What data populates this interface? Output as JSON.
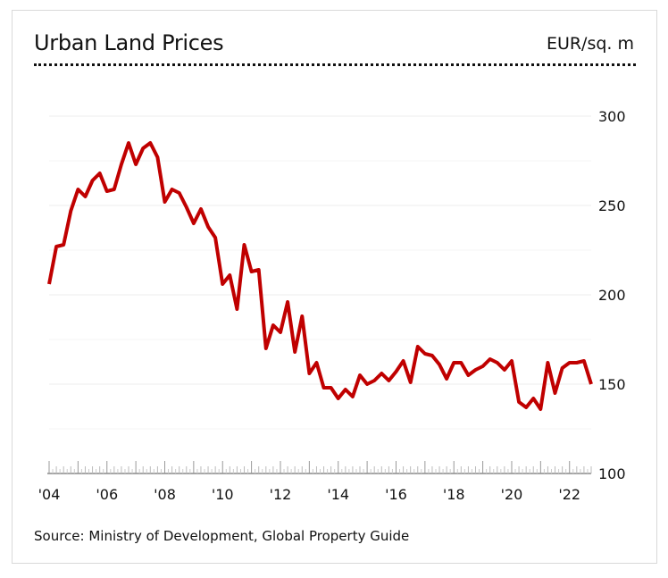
{
  "header": {
    "title": "Urban Land Prices",
    "unit": "EUR/sq. m"
  },
  "footer": {
    "source": "Source: Ministry of Development, Global Property Guide"
  },
  "colors": {
    "line": "#c00000",
    "grid": "#ececec",
    "axis": "#aaaaaa"
  },
  "chart_data": {
    "type": "line",
    "title": "Urban Land Prices",
    "unit": "EUR/sq. m",
    "xlabel": "",
    "ylabel": "",
    "ylim": [
      100,
      300
    ],
    "xlim": [
      2004.0,
      2022.75
    ],
    "y_ticks": [
      100,
      150,
      200,
      250,
      300
    ],
    "x_tick_labels": [
      {
        "year": 2004,
        "label": "'04"
      },
      {
        "year": 2006,
        "label": "'06"
      },
      {
        "year": 2008,
        "label": "'08"
      },
      {
        "year": 2010,
        "label": "'10"
      },
      {
        "year": 2012,
        "label": "'12"
      },
      {
        "year": 2014,
        "label": "'14"
      },
      {
        "year": 2016,
        "label": "'16"
      },
      {
        "year": 2018,
        "label": "'18"
      },
      {
        "year": 2020,
        "label": "'20"
      },
      {
        "year": 2022,
        "label": "'22"
      }
    ],
    "grid": true,
    "y_axis_position": "right",
    "series": [
      {
        "x": [
          2004.0,
          2004.25,
          2004.5,
          2004.75,
          2005.0,
          2005.25,
          2005.5,
          2005.75,
          2006.0,
          2006.25,
          2006.5,
          2006.75,
          2007.0,
          2007.25,
          2007.5,
          2007.75,
          2008.0,
          2008.25,
          2008.5,
          2008.75,
          2009.0,
          2009.25,
          2009.5,
          2009.75,
          2010.0,
          2010.25,
          2010.5,
          2010.75,
          2011.0,
          2011.25,
          2011.5,
          2011.75,
          2012.0,
          2012.25,
          2012.5,
          2012.75,
          2013.0,
          2013.25,
          2013.5,
          2013.75,
          2014.0,
          2014.25,
          2014.5,
          2014.75,
          2015.0,
          2015.25,
          2015.5,
          2015.75,
          2016.0,
          2016.25,
          2016.5,
          2016.75,
          2017.0,
          2017.25,
          2017.5,
          2017.75,
          2018.0,
          2018.25,
          2018.5,
          2018.75,
          2019.0,
          2019.25,
          2019.5,
          2019.75,
          2020.0,
          2020.25,
          2020.5,
          2020.75,
          2021.0,
          2021.25,
          2021.5,
          2021.75,
          2022.0,
          2022.25,
          2022.5,
          2022.75
        ],
        "values": [
          206,
          227,
          228,
          247,
          259,
          255,
          264,
          268,
          258,
          259,
          273,
          285,
          273,
          282,
          285,
          277,
          252,
          259,
          257,
          249,
          240,
          248,
          238,
          232,
          206,
          211,
          192,
          228,
          213,
          214,
          170,
          183,
          179,
          196,
          168,
          188,
          156,
          162,
          148,
          148,
          142,
          147,
          143,
          155,
          150,
          152,
          156,
          152,
          157,
          163,
          151,
          171,
          167,
          166,
          161,
          153,
          162,
          162,
          155,
          158,
          160,
          164,
          162,
          158,
          163,
          140,
          137,
          142,
          136,
          162,
          145,
          159,
          162,
          162,
          163,
          150
        ]
      }
    ]
  }
}
